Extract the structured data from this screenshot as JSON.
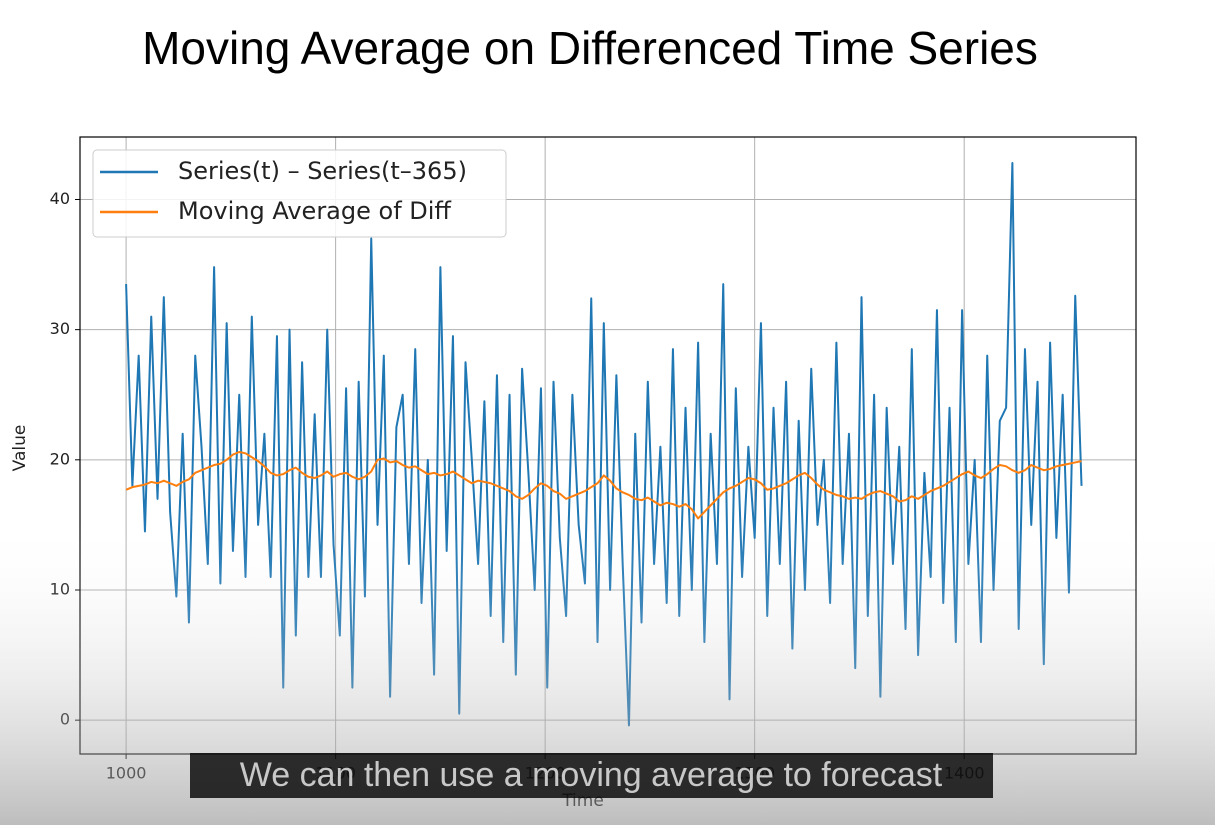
{
  "chart_data": {
    "type": "line",
    "title": "Moving Average on Differenced Time Series",
    "x_label": "Time",
    "y_label": "Value",
    "caption": "We can then use a moving average to forecast",
    "x": [
      1000,
      1003,
      1006,
      1009,
      1012,
      1015,
      1018,
      1021,
      1024,
      1027,
      1030,
      1033,
      1036,
      1039,
      1042,
      1045,
      1048,
      1051,
      1054,
      1057,
      1060,
      1063,
      1066,
      1069,
      1072,
      1075,
      1078,
      1081,
      1084,
      1087,
      1090,
      1093,
      1096,
      1099,
      1102,
      1105,
      1108,
      1111,
      1114,
      1117,
      1120,
      1123,
      1126,
      1129,
      1132,
      1135,
      1138,
      1141,
      1144,
      1147,
      1150,
      1153,
      1156,
      1159,
      1162,
      1165,
      1168,
      1171,
      1174,
      1177,
      1180,
      1183,
      1186,
      1189,
      1192,
      1195,
      1198,
      1201,
      1204,
      1207,
      1210,
      1213,
      1216,
      1219,
      1222,
      1225,
      1228,
      1231,
      1234,
      1237,
      1240,
      1243,
      1246,
      1249,
      1252,
      1255,
      1258,
      1261,
      1264,
      1267,
      1270,
      1273,
      1276,
      1279,
      1282,
      1285,
      1288,
      1291,
      1294,
      1297,
      1300,
      1303,
      1306,
      1309,
      1312,
      1315,
      1318,
      1321,
      1324,
      1327,
      1330,
      1333,
      1336,
      1339,
      1342,
      1345,
      1348,
      1351,
      1354,
      1357,
      1360,
      1363,
      1366,
      1369,
      1372,
      1375,
      1378,
      1381,
      1384,
      1387,
      1390,
      1393,
      1396,
      1399,
      1402,
      1405,
      1408,
      1411,
      1414,
      1417,
      1420,
      1423,
      1426,
      1429,
      1432,
      1435,
      1438,
      1441,
      1444,
      1447,
      1450,
      1453,
      1456
    ],
    "series": [
      {
        "name": "Series(t) – Series(t–365)",
        "color": "#1f77b4",
        "values": [
          33.5,
          18,
          28,
          14.5,
          31,
          17,
          32.5,
          16,
          9.5,
          22,
          7.5,
          28,
          21,
          12,
          34.8,
          10.5,
          30.5,
          13,
          25,
          11,
          31,
          15,
          22,
          11,
          29.5,
          2.5,
          30,
          6.5,
          27.5,
          11,
          23.5,
          11,
          30,
          13.5,
          6.5,
          25.5,
          2.5,
          26,
          9.5,
          37,
          15,
          28,
          1.8,
          22.5,
          25,
          12,
          28.5,
          9,
          20,
          3.5,
          34.8,
          13,
          29.5,
          0.5,
          27.5,
          20,
          12,
          24.5,
          8,
          26.5,
          6,
          25,
          3.5,
          27,
          19,
          10,
          25.5,
          2.5,
          26,
          14,
          8,
          25,
          15,
          10.5,
          32.4,
          6,
          30.5,
          10,
          26.5,
          12,
          -0.4,
          22,
          7.5,
          26,
          12,
          21,
          9,
          28.5,
          8,
          24,
          10,
          29,
          6,
          22,
          12,
          33.5,
          1.6,
          25.5,
          11,
          21,
          14,
          30.5,
          8,
          24,
          12,
          26,
          5.5,
          23,
          10,
          27,
          15,
          20,
          9,
          29,
          12,
          22,
          4,
          32.5,
          8,
          25,
          1.8,
          24,
          12,
          21,
          7,
          28.5,
          5,
          19,
          11,
          31.5,
          9,
          24,
          6,
          31.5,
          12,
          20,
          6,
          28,
          10,
          23,
          24,
          42.8,
          7,
          28.5,
          15,
          26,
          4.3,
          29,
          14,
          25,
          9.8,
          32.6,
          18
        ]
      },
      {
        "name": "Moving Average of Diff",
        "color": "#ff7f0e",
        "values": [
          17.7,
          17.9,
          18.0,
          18.1,
          18.3,
          18.2,
          18.4,
          18.2,
          18.0,
          18.3,
          18.5,
          19.0,
          19.2,
          19.4,
          19.6,
          19.7,
          20.0,
          20.4,
          20.6,
          20.5,
          20.2,
          19.9,
          19.5,
          19.0,
          18.8,
          18.9,
          19.2,
          19.4,
          19.0,
          18.7,
          18.6,
          18.8,
          19.1,
          18.7,
          18.9,
          19.0,
          18.7,
          18.5,
          18.7,
          19.1,
          20.0,
          20.1,
          19.8,
          19.9,
          19.6,
          19.4,
          19.5,
          19.2,
          18.9,
          19.0,
          18.8,
          18.9,
          19.1,
          18.8,
          18.5,
          18.2,
          18.4,
          18.3,
          18.2,
          18.0,
          17.8,
          17.6,
          17.2,
          17.0,
          17.3,
          17.8,
          18.2,
          18.0,
          17.6,
          17.4,
          17.0,
          17.2,
          17.4,
          17.6,
          17.9,
          18.2,
          18.8,
          18.4,
          17.8,
          17.5,
          17.3,
          17.0,
          16.9,
          17.1,
          16.8,
          16.5,
          16.7,
          16.6,
          16.4,
          16.6,
          16.2,
          15.5,
          16.0,
          16.5,
          17.0,
          17.5,
          17.8,
          18.0,
          18.3,
          18.6,
          18.5,
          18.2,
          17.7,
          17.8,
          18.0,
          18.2,
          18.5,
          18.8,
          19.0,
          18.6,
          18.1,
          17.7,
          17.5,
          17.3,
          17.2,
          17.0,
          17.1,
          17.0,
          17.3,
          17.5,
          17.6,
          17.4,
          17.2,
          16.8,
          16.9,
          17.2,
          17.0,
          17.3,
          17.6,
          17.8,
          18.0,
          18.3,
          18.6,
          18.9,
          19.1,
          18.8,
          18.6,
          18.9,
          19.3,
          19.6,
          19.5,
          19.2,
          19.0,
          19.2,
          19.6,
          19.4,
          19.2,
          19.3,
          19.5,
          19.6,
          19.7,
          19.8,
          19.9
        ]
      }
    ],
    "xlim": [
      978,
      1482
    ],
    "ylim": [
      -2.6,
      44.8
    ],
    "xticks": [
      1000,
      1100,
      1200,
      1300,
      1400
    ],
    "yticks": [
      0,
      10,
      20,
      30,
      40
    ],
    "grid": true,
    "legend": "upper left"
  }
}
